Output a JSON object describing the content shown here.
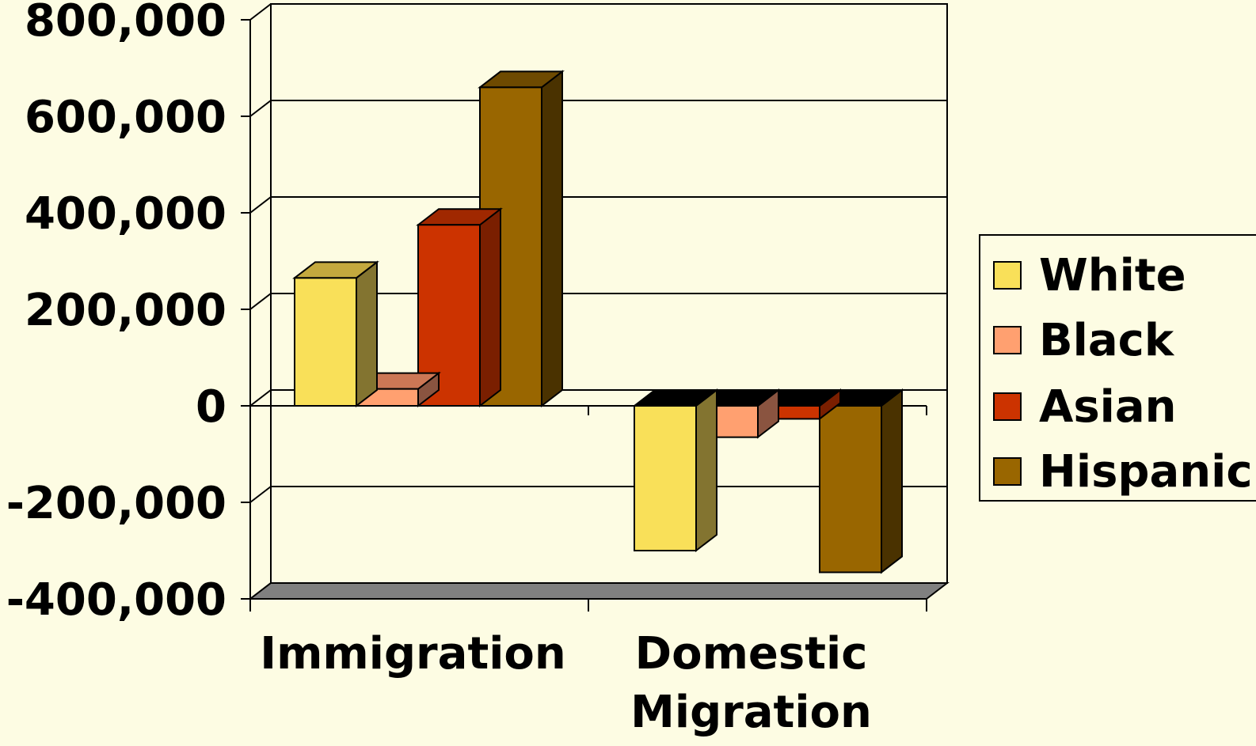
{
  "chart_data": {
    "type": "bar",
    "categories": [
      "Immigration",
      "Domestic Migration"
    ],
    "category_label_lines": [
      [
        "Immigration"
      ],
      [
        "Domestic",
        "Migration"
      ]
    ],
    "series": [
      {
        "name": "White",
        "values": [
          265000,
          -300000
        ]
      },
      {
        "name": "Black",
        "values": [
          35000,
          -65000
        ]
      },
      {
        "name": "Asian",
        "values": [
          375000,
          -27000
        ]
      },
      {
        "name": "Hispanic",
        "values": [
          660000,
          -345000
        ]
      }
    ],
    "ylim": [
      -400000,
      800000
    ],
    "yticks": [
      800000,
      600000,
      400000,
      200000,
      0,
      -200000,
      -400000
    ],
    "ytick_labels": [
      "800,000",
      "600,000",
      "400,000",
      "200,000",
      "0",
      "-200,000",
      "-400,000"
    ],
    "grid": true,
    "legend_position": "right",
    "series_colors": [
      "#F9E059",
      "#FFA070",
      "#CC3300",
      "#996600"
    ],
    "series_side_colors": [
      "#837430",
      "#8A5440",
      "#7A1F00",
      "#4A3200"
    ],
    "series_top_colors": [
      "#C4A93E",
      "#CC7755",
      "#A02800",
      "#6E4A00"
    ],
    "background_color": "#FDFCE3",
    "floor_color": "#808080"
  },
  "legend": {
    "items": [
      {
        "label": "White",
        "color": "#F9E059"
      },
      {
        "label": "Black",
        "color": "#FFA070"
      },
      {
        "label": "Asian",
        "color": "#CC3300"
      },
      {
        "label": "Hispanic",
        "color": "#996600"
      }
    ]
  }
}
